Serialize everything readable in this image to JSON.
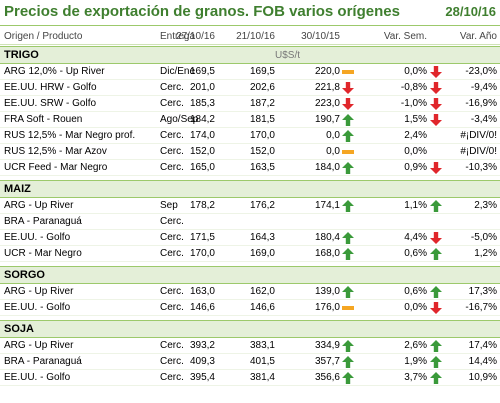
{
  "header": {
    "title": "Precios de exportación de granos. FOB varios orígenes",
    "date": "28/10/16"
  },
  "columns": {
    "origin": "Origen / Producto",
    "delivery": "Entrega",
    "d1": "27/10/16",
    "d2": "21/10/16",
    "d3": "30/10/15",
    "var_week": "Var. Sem.",
    "var_year": "Var. Año"
  },
  "colors": {
    "title": "#3f7f2f",
    "up": "#3a9a3a",
    "down": "#e0262b",
    "neutral": "#f5a623"
  },
  "sections": [
    {
      "label": "TRIGO",
      "unit": "U$S/t",
      "rows": [
        {
          "name": "ARG 12,0% - Up River",
          "delivery": "Dic/Ene",
          "p1": "169,5",
          "p2": "169,5",
          "p3": "220,0",
          "ind1": "neutral",
          "var_week": "0,0%",
          "ind2": "down",
          "var_year": "-23,0%"
        },
        {
          "name": "EE.UU. HRW - Golfo",
          "delivery": "Cerc.",
          "p1": "201,0",
          "p2": "202,6",
          "p3": "221,8",
          "ind1": "down",
          "var_week": "-0,8%",
          "ind2": "down",
          "var_year": "-9,4%"
        },
        {
          "name": "EE.UU. SRW - Golfo",
          "delivery": "Cerc.",
          "p1": "185,3",
          "p2": "187,2",
          "p3": "223,0",
          "ind1": "down",
          "var_week": "-1,0%",
          "ind2": "down",
          "var_year": "-16,9%"
        },
        {
          "name": "FRA Soft - Rouen",
          "delivery": "Ago/Sep",
          "p1": "184,2",
          "p2": "181,5",
          "p3": "190,7",
          "ind1": "up",
          "var_week": "1,5%",
          "ind2": "down",
          "var_year": "-3,4%"
        },
        {
          "name": "RUS 12,5% - Mar Negro prof.",
          "delivery": "Cerc.",
          "p1": "174,0",
          "p2": "170,0",
          "p3": "0,0",
          "ind1": "up",
          "var_week": "2,4%",
          "ind2": "",
          "var_year": "#¡DIV/0!"
        },
        {
          "name": "RUS 12,5% - Mar Azov",
          "delivery": "Cerc.",
          "p1": "152,0",
          "p2": "152,0",
          "p3": "0,0",
          "ind1": "neutral",
          "var_week": "0,0%",
          "ind2": "",
          "var_year": "#¡DIV/0!"
        },
        {
          "name": "UCR Feed - Mar Negro",
          "delivery": "Cerc.",
          "p1": "165,0",
          "p2": "163,5",
          "p3": "184,0",
          "ind1": "up",
          "var_week": "0,9%",
          "ind2": "down",
          "var_year": "-10,3%"
        }
      ]
    },
    {
      "label": "MAIZ",
      "unit": "",
      "rows": [
        {
          "name": "ARG - Up River",
          "delivery": "Sep",
          "p1": "178,2",
          "p2": "176,2",
          "p3": "174,1",
          "ind1": "up",
          "var_week": "1,1%",
          "ind2": "up",
          "var_year": "2,3%"
        },
        {
          "name": "BRA - Paranaguá",
          "delivery": "Cerc.",
          "p1": "",
          "p2": "",
          "p3": "",
          "ind1": "",
          "var_week": "",
          "ind2": "",
          "var_year": ""
        },
        {
          "name": "EE.UU. - Golfo",
          "delivery": "Cerc.",
          "p1": "171,5",
          "p2": "164,3",
          "p3": "180,4",
          "ind1": "up",
          "var_week": "4,4%",
          "ind2": "down",
          "var_year": "-5,0%"
        },
        {
          "name": "UCR - Mar Negro",
          "delivery": "Cerc.",
          "p1": "170,0",
          "p2": "169,0",
          "p3": "168,0",
          "ind1": "up",
          "var_week": "0,6%",
          "ind2": "up",
          "var_year": "1,2%"
        }
      ]
    },
    {
      "label": "SORGO",
      "unit": "",
      "rows": [
        {
          "name": "ARG - Up River",
          "delivery": "Cerc.",
          "p1": "163,0",
          "p2": "162,0",
          "p3": "139,0",
          "ind1": "up",
          "var_week": "0,6%",
          "ind2": "up",
          "var_year": "17,3%"
        },
        {
          "name": "EE.UU. - Golfo",
          "delivery": "Cerc.",
          "p1": "146,6",
          "p2": "146,6",
          "p3": "176,0",
          "ind1": "neutral",
          "var_week": "0,0%",
          "ind2": "down",
          "var_year": "-16,7%"
        }
      ]
    },
    {
      "label": "SOJA",
      "unit": "",
      "rows": [
        {
          "name": "ARG - Up River",
          "delivery": "Cerc.",
          "p1": "393,2",
          "p2": "383,1",
          "p3": "334,9",
          "ind1": "up",
          "var_week": "2,6%",
          "ind2": "up",
          "var_year": "17,4%"
        },
        {
          "name": "BRA - Paranaguá",
          "delivery": "Cerc.",
          "p1": "409,3",
          "p2": "401,5",
          "p3": "357,7",
          "ind1": "up",
          "var_week": "1,9%",
          "ind2": "up",
          "var_year": "14,4%"
        },
        {
          "name": "EE.UU. - Golfo",
          "delivery": "Cerc.",
          "p1": "395,4",
          "p2": "381,4",
          "p3": "356,6",
          "ind1": "up",
          "var_week": "3,7%",
          "ind2": "up",
          "var_year": "10,9%"
        }
      ]
    }
  ]
}
